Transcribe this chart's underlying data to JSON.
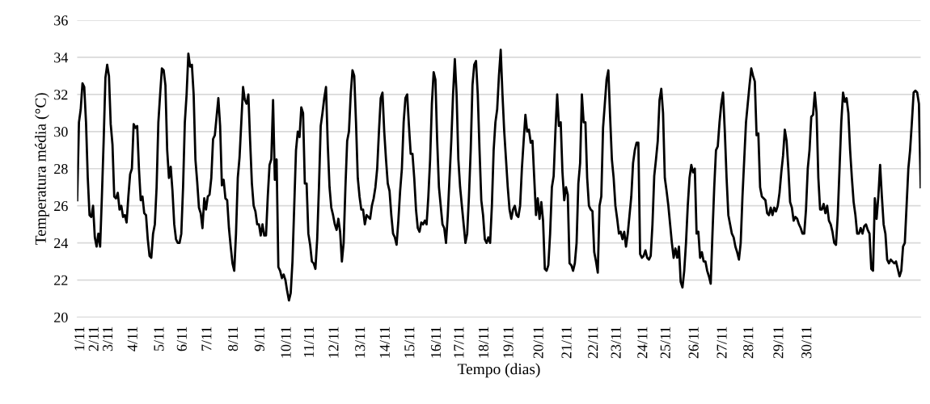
{
  "chart_data": {
    "type": "line",
    "xlabel": "Tempo (dias)",
    "ylabel": "Temperatura média (°C)",
    "ylim": [
      20,
      36
    ],
    "yticks": [
      20,
      22,
      24,
      26,
      28,
      30,
      32,
      34,
      36
    ],
    "grid": "y",
    "marker": "none",
    "line_style": "solid",
    "categories": [
      null,
      null,
      "1/11",
      null,
      null,
      null,
      null,
      null,
      null,
      null,
      "2/11",
      null,
      null,
      null,
      null,
      null,
      null,
      null,
      "3/11",
      null,
      null,
      null,
      null,
      null,
      null,
      null,
      null,
      null,
      null,
      null,
      null,
      null,
      "4/11",
      null,
      null,
      null,
      null,
      null,
      null,
      null,
      null,
      null,
      null,
      null,
      null,
      null,
      null,
      "5/11",
      null,
      null,
      null,
      null,
      null,
      null,
      null,
      null,
      null,
      null,
      null,
      null,
      "6/11",
      null,
      null,
      null,
      null,
      null,
      null,
      null,
      null,
      null,
      null,
      null,
      null,
      null,
      "7/11",
      null,
      null,
      null,
      null,
      null,
      null,
      null,
      null,
      null,
      null,
      null,
      null,
      null,
      null,
      "8/11",
      null,
      null,
      null,
      null,
      null,
      null,
      null,
      null,
      null,
      null,
      null,
      null,
      null,
      null,
      "9/11",
      null,
      null,
      null,
      null,
      null,
      null,
      null,
      null,
      null,
      null,
      null,
      null,
      null,
      null,
      "10/11",
      null,
      null,
      null,
      null,
      null,
      null,
      null,
      null,
      null,
      null,
      null,
      null,
      "11/11",
      null,
      null,
      null,
      null,
      null,
      null,
      null,
      null,
      null,
      null,
      null,
      null,
      null,
      "12/11",
      null,
      null,
      null,
      null,
      null,
      null,
      null,
      null,
      null,
      null,
      null,
      null,
      null,
      null,
      "13/11",
      null,
      null,
      null,
      null,
      null,
      null,
      null,
      null,
      null,
      null,
      null,
      null,
      null,
      "14/11",
      null,
      null,
      null,
      null,
      null,
      null,
      null,
      null,
      null,
      null,
      null,
      null,
      null,
      "15/11",
      null,
      null,
      null,
      null,
      null,
      null,
      null,
      null,
      null,
      null,
      null,
      null,
      null,
      null,
      "16/11",
      null,
      null,
      null,
      null,
      null,
      null,
      null,
      null,
      null,
      null,
      null,
      null,
      "17/11",
      null,
      null,
      null,
      null,
      null,
      null,
      null,
      null,
      null,
      null,
      null,
      null,
      null,
      "18/11",
      null,
      null,
      null,
      null,
      null,
      null,
      null,
      null,
      null,
      null,
      null,
      null,
      null,
      "19/11",
      null,
      null,
      null,
      null,
      null,
      null,
      null,
      null,
      null,
      null,
      null,
      null,
      null,
      null,
      null,
      null,
      "20/11",
      null,
      null,
      null,
      null,
      null,
      null,
      null,
      null,
      null,
      null,
      null,
      null,
      null,
      null,
      null,
      "21/11",
      null,
      null,
      null,
      null,
      null,
      null,
      null,
      null,
      null,
      null,
      null,
      null,
      null,
      null,
      "22/11",
      null,
      null,
      null,
      null,
      null,
      null,
      null,
      null,
      null,
      null,
      null,
      null,
      "23/11",
      null,
      null,
      null,
      null,
      null,
      null,
      null,
      null,
      null,
      null,
      null,
      null,
      null,
      null,
      "24/11",
      null,
      null,
      null,
      null,
      null,
      null,
      null,
      null,
      null,
      null,
      null,
      null,
      "25/11",
      null,
      null,
      null,
      null,
      null,
      null,
      null,
      null,
      null,
      null,
      null,
      null,
      null,
      null,
      null,
      "26/11",
      null,
      null,
      null,
      null,
      null,
      null,
      null,
      null,
      null,
      null,
      null,
      null,
      null,
      null,
      null,
      "27/11",
      null,
      null,
      null,
      null,
      null,
      null,
      null,
      null,
      null,
      null,
      null,
      null,
      null,
      null,
      "28/11",
      null,
      null,
      null,
      null,
      null,
      null,
      null,
      null,
      null,
      null,
      null,
      null,
      null,
      null,
      null,
      null,
      "29/11",
      null,
      null,
      null,
      null,
      null,
      null,
      null,
      null,
      null,
      null,
      null,
      null,
      null,
      null,
      null,
      "30/11",
      null,
      null,
      null,
      null,
      null,
      null,
      null,
      null,
      null,
      null,
      null,
      null,
      null,
      null,
      null,
      null,
      null,
      null,
      null,
      null,
      null,
      null,
      null,
      null,
      null,
      null,
      null,
      null,
      null,
      null,
      null,
      null,
      null,
      null,
      null,
      null,
      null,
      null,
      null,
      null,
      null,
      null,
      null,
      null,
      null,
      null,
      null,
      null,
      null,
      null,
      null,
      null,
      null,
      null,
      null,
      null,
      null,
      null,
      null,
      null,
      null,
      null,
      null,
      null
    ],
    "series": [
      {
        "color": "#000000",
        "values": [
          26.3,
          30.5,
          31.2,
          32.6,
          32.4,
          30.5,
          27.5,
          25.5,
          25.4,
          26.0,
          24.3,
          23.8,
          24.5,
          23.8,
          26.5,
          29.5,
          32.9,
          33.6,
          33.0,
          30.4,
          29.3,
          26.5,
          26.4,
          26.7,
          25.8,
          26.0,
          25.4,
          25.5,
          25.1,
          26.5,
          27.7,
          28.0,
          30.4,
          30.2,
          30.3,
          28.0,
          26.3,
          26.5,
          25.6,
          25.5,
          24.2,
          23.3,
          23.2,
          24.5,
          25.0,
          27.0,
          30.5,
          32.0,
          33.4,
          33.3,
          32.5,
          29.0,
          27.5,
          28.1,
          26.8,
          25.0,
          24.2,
          24.0,
          24.0,
          24.5,
          27.0,
          30.5,
          32.0,
          34.2,
          33.5,
          33.6,
          32.0,
          28.5,
          27.3,
          25.9,
          25.6,
          24.8,
          26.4,
          25.8,
          26.5,
          26.6,
          27.5,
          29.6,
          29.8,
          30.8,
          31.8,
          30.3,
          27.1,
          27.4,
          26.4,
          26.3,
          24.8,
          23.8,
          22.9,
          22.5,
          24.5,
          27.5,
          28.6,
          30.5,
          32.4,
          31.7,
          31.5,
          32.0,
          29.5,
          27.2,
          26.0,
          25.7,
          25.0,
          25.0,
          24.4,
          25.0,
          24.4,
          24.4,
          26.5,
          28.2,
          28.5,
          31.7,
          27.4,
          28.5,
          22.7,
          22.5,
          22.1,
          22.3,
          22.0,
          21.4,
          20.9,
          21.3,
          23.0,
          26.0,
          29.0,
          30.0,
          29.7,
          31.3,
          31.0,
          27.2,
          27.2,
          24.5,
          23.9,
          23.0,
          22.9,
          22.6,
          24.2,
          27.0,
          30.3,
          31.0,
          31.8,
          32.4,
          29.3,
          27.0,
          25.9,
          25.5,
          25.0,
          24.7,
          25.3,
          24.6,
          23.0,
          24.0,
          27.0,
          29.5,
          30.0,
          32.0,
          33.3,
          33.0,
          30.5,
          27.5,
          26.5,
          25.8,
          25.8,
          25.0,
          25.5,
          25.4,
          25.3,
          26.0,
          26.4,
          27.0,
          28.0,
          30.0,
          31.8,
          32.1,
          30.0,
          28.5,
          27.2,
          26.8,
          25.5,
          24.5,
          24.3,
          23.9,
          25.2,
          26.8,
          28.0,
          30.5,
          31.8,
          32.0,
          30.3,
          28.8,
          28.8,
          27.5,
          25.8,
          24.8,
          24.6,
          25.1,
          25.0,
          25.2,
          25.0,
          26.5,
          28.5,
          31.5,
          33.2,
          32.8,
          29.5,
          27.0,
          26.0,
          25.0,
          24.8,
          24.0,
          25.5,
          27.5,
          29.5,
          32.0,
          33.9,
          32.0,
          28.5,
          27.0,
          26.0,
          25.0,
          24.0,
          24.5,
          26.5,
          29.0,
          32.5,
          33.6,
          33.8,
          32.0,
          29.0,
          26.3,
          25.5,
          24.2,
          24.0,
          24.3,
          24.0,
          26.0,
          29.0,
          30.5,
          31.2,
          33.0,
          34.4,
          32.0,
          30.0,
          28.5,
          27.0,
          25.8,
          25.3,
          25.8,
          26.0,
          25.5,
          25.4,
          26.0,
          28.0,
          29.5,
          30.9,
          30.0,
          30.1,
          29.4,
          29.5,
          27.5,
          25.5,
          26.4,
          25.3,
          26.2,
          25.2,
          22.6,
          22.5,
          22.8,
          24.5,
          27.0,
          27.6,
          30.0,
          32.0,
          30.3,
          30.5,
          27.8,
          26.3,
          27.0,
          26.6,
          22.9,
          22.8,
          22.5,
          22.9,
          24.0,
          27.2,
          28.3,
          32.0,
          30.5,
          30.5,
          27.5,
          26.0,
          25.8,
          25.7,
          23.5,
          23.0,
          22.4,
          26.0,
          26.5,
          30.2,
          31.5,
          32.8,
          33.3,
          30.8,
          28.5,
          27.5,
          26.0,
          25.3,
          24.5,
          24.6,
          24.2,
          24.6,
          23.8,
          24.5,
          25.5,
          26.5,
          28.3,
          29.0,
          29.4,
          29.4,
          23.4,
          23.2,
          23.3,
          23.6,
          23.2,
          23.1,
          23.3,
          25.0,
          27.6,
          28.5,
          29.5,
          31.7,
          32.3,
          31.0,
          27.5,
          26.8,
          26.0,
          25.0,
          24.0,
          23.2,
          23.7,
          23.2,
          23.8,
          21.9,
          21.6,
          22.5,
          24.0,
          26.0,
          27.5,
          28.2,
          27.8,
          28.0,
          24.5,
          24.6,
          23.2,
          23.5,
          23.0,
          23.0,
          22.5,
          22.2,
          21.8,
          24.5,
          27.0,
          29.0,
          29.2,
          30.5,
          31.5,
          32.1,
          30.0,
          27.5,
          25.5,
          25.0,
          24.5,
          24.3,
          23.8,
          23.5,
          23.1,
          24.0,
          26.5,
          28.5,
          30.5,
          31.5,
          32.5,
          33.4,
          33.0,
          32.7,
          29.8,
          29.9,
          27.0,
          26.5,
          26.4,
          26.3,
          25.6,
          25.5,
          25.9,
          25.5,
          25.9,
          25.7,
          26.0,
          26.7,
          27.8,
          28.7,
          30.1,
          29.5,
          28.0,
          26.2,
          25.9,
          25.2,
          25.4,
          25.3,
          25.0,
          24.8,
          24.5,
          24.5,
          25.8,
          28.0,
          29.0,
          30.8,
          30.9,
          32.1,
          31.0,
          27.5,
          25.8,
          25.8,
          26.1,
          25.6,
          26.0,
          25.2,
          25.0,
          24.6,
          24.0,
          23.9,
          25.5,
          28.0,
          30.5,
          32.1,
          31.6,
          31.8,
          31.0,
          29.0,
          27.5,
          26.2,
          25.5,
          24.5,
          24.5,
          24.8,
          24.5,
          24.9,
          25.0,
          24.7,
          24.5,
          22.6,
          22.5,
          26.4,
          25.3,
          26.5,
          28.2,
          26.5,
          25.0,
          24.5,
          23.1,
          22.9,
          23.1,
          23.0,
          22.9,
          23.0,
          22.6,
          22.2,
          22.5,
          23.8,
          24.0,
          26.0,
          28.0,
          29.0,
          30.5,
          32.1,
          32.2,
          32.1,
          31.5,
          27.0
        ]
      }
    ]
  }
}
